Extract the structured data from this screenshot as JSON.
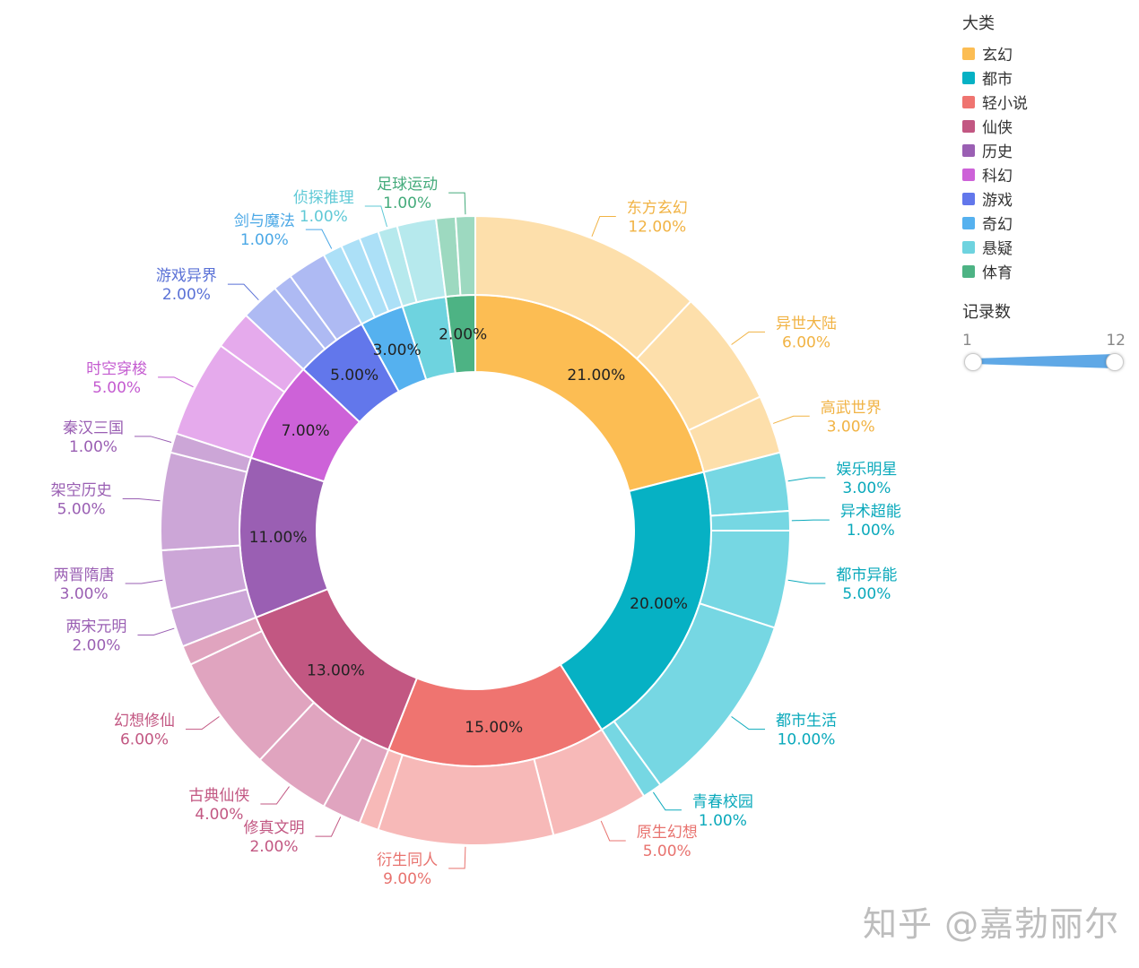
{
  "chart_data": {
    "type": "sunburst",
    "legend": {
      "title": "大类",
      "items": [
        {
          "name": "玄幻",
          "color": "#fcbd53"
        },
        {
          "name": "都市",
          "color": "#06b1c4"
        },
        {
          "name": "轻小说",
          "color": "#ef7470"
        },
        {
          "name": "仙侠",
          "color": "#c25782"
        },
        {
          "name": "历史",
          "color": "#9a5fb3"
        },
        {
          "name": "科幻",
          "color": "#cd62d8"
        },
        {
          "name": "游戏",
          "color": "#6277eb"
        },
        {
          "name": "奇幻",
          "color": "#55b1ef"
        },
        {
          "name": "悬疑",
          "color": "#6ed3df"
        },
        {
          "name": "体育",
          "color": "#4db384"
        }
      ]
    },
    "visual_map": {
      "title": "记录数",
      "min_label": "1",
      "max_label": "12",
      "min": 1,
      "max": 12
    },
    "inner": [
      {
        "name": "玄幻",
        "value": 21,
        "label": "21.00%",
        "color": "#fcbd53"
      },
      {
        "name": "都市",
        "value": 20,
        "label": "20.00%",
        "color": "#06b1c4"
      },
      {
        "name": "轻小说",
        "value": 15,
        "label": "15.00%",
        "color": "#ef7470"
      },
      {
        "name": "仙侠",
        "value": 13,
        "label": "13.00%",
        "color": "#c25782"
      },
      {
        "name": "历史",
        "value": 11,
        "label": "11.00%",
        "color": "#9a5fb3"
      },
      {
        "name": "科幻",
        "value": 7,
        "label": "7.00%",
        "color": "#cd62d8"
      },
      {
        "name": "游戏",
        "value": 5,
        "label": "5.00%",
        "color": "#6277eb"
      },
      {
        "name": "奇幻",
        "value": 3,
        "label": "3.00%",
        "color": "#55b1ef"
      },
      {
        "name": "悬疑",
        "value": 3,
        "label": "",
        "color": "#6ed3df"
      },
      {
        "name": "体育",
        "value": 2,
        "label": "2.00%",
        "color": "#4db384"
      }
    ],
    "outer": [
      {
        "name": "东方玄幻",
        "value": 12,
        "label": "12.00%",
        "color": "#fddfab"
      },
      {
        "name": "异世大陆",
        "value": 6,
        "label": "6.00%",
        "color": "#fddfab"
      },
      {
        "name": "高武世界",
        "value": 3,
        "label": "3.00%",
        "color": "#fddfab"
      },
      {
        "name": "娱乐明星",
        "value": 3,
        "label": "3.00%",
        "color": "#76d7e3"
      },
      {
        "name": "异术超能",
        "value": 1,
        "label": "1.00%",
        "color": "#76d7e3"
      },
      {
        "name": "都市异能",
        "value": 5,
        "label": "5.00%",
        "color": "#76d7e3"
      },
      {
        "name": "都市生活",
        "value": 10,
        "label": "10.00%",
        "color": "#76d7e3"
      },
      {
        "name": "青春校园",
        "value": 1,
        "label": "1.00%",
        "color": "#76d7e3"
      },
      {
        "name": "原生幻想",
        "value": 5,
        "label": "5.00%",
        "color": "#f7b9b8"
      },
      {
        "name": "衍生同人",
        "value": 9,
        "label": "9.00%",
        "color": "#f7b9b8"
      },
      {
        "name": "",
        "value": 1,
        "label": "",
        "color": "#f7b9b8"
      },
      {
        "name": "修真文明",
        "value": 2,
        "label": "2.00%",
        "color": "#e0a4bf"
      },
      {
        "name": "古典仙侠",
        "value": 4,
        "label": "4.00%",
        "color": "#e0a4bf"
      },
      {
        "name": "幻想修仙",
        "value": 6,
        "label": "6.00%",
        "color": "#e0a4bf"
      },
      {
        "name": "",
        "value": 1,
        "label": "",
        "color": "#e0a4bf"
      },
      {
        "name": "两宋元明",
        "value": 2,
        "label": "2.00%",
        "color": "#cca6d7"
      },
      {
        "name": "两晋隋唐",
        "value": 3,
        "label": "3.00%",
        "color": "#cca6d7"
      },
      {
        "name": "架空历史",
        "value": 5,
        "label": "5.00%",
        "color": "#cca6d7"
      },
      {
        "name": "秦汉三国",
        "value": 1,
        "label": "1.00%",
        "color": "#cca6d7"
      },
      {
        "name": "时空穿梭",
        "value": 5,
        "label": "5.00%",
        "color": "#e5aaec"
      },
      {
        "name": "",
        "value": 2,
        "label": "",
        "color": "#e5aaec"
      },
      {
        "name": "游戏异界",
        "value": 2,
        "label": "2.00%",
        "color": "#aebaf3"
      },
      {
        "name": "",
        "value": 1,
        "label": "",
        "color": "#aebaf3"
      },
      {
        "name": "",
        "value": 2,
        "label": "",
        "color": "#aebaf3"
      },
      {
        "name": "剑与魔法",
        "value": 1,
        "label": "1.00%",
        "color": "#ace0f7"
      },
      {
        "name": "",
        "value": 1,
        "label": "",
        "color": "#ace0f7"
      },
      {
        "name": "",
        "value": 1,
        "label": "",
        "color": "#ace0f7"
      },
      {
        "name": "侦探推理",
        "value": 1,
        "label": "1.00%",
        "color": "#b6e9ed"
      },
      {
        "name": "",
        "value": 2,
        "label": "",
        "color": "#b6e9ed"
      },
      {
        "name": "",
        "value": 1,
        "label": "",
        "color": "#9dd9c0"
      },
      {
        "name": "足球运动",
        "value": 1,
        "label": "1.00%",
        "color": "#9dd9c0"
      }
    ],
    "outer_label_colors": {
      "玄幻": "#f1b344",
      "都市": "#0aa9bb",
      "轻小说": "#e8736f",
      "仙侠": "#c25782",
      "历史": "#9a5fb3",
      "科幻": "#c45bd0",
      "游戏": "#5a71d6",
      "奇幻": "#4ba8e6",
      "悬疑": "#5fc9d6",
      "体育": "#44ab7b"
    }
  },
  "watermark": "知乎 @嘉勃丽尔"
}
